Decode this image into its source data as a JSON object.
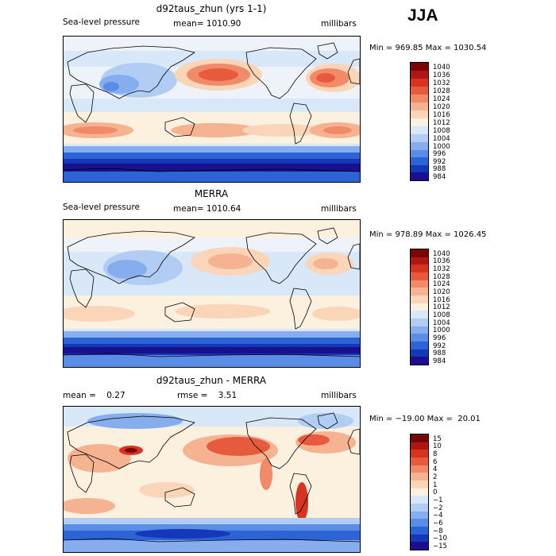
{
  "season": "JJA",
  "panels": [
    {
      "id": "model",
      "title": "d92taus_zhun (yrs 1-1)",
      "variable": "Sea-level pressure",
      "stat_left": "",
      "stat_mid": "mean= 1010.90",
      "units": "millibars",
      "minmax": "Min = 969.85 Max = 1030.54",
      "colors": [
        "#1a0f8c",
        "#1537b9",
        "#2c64d6",
        "#5a8ee6",
        "#86adee",
        "#b1cdf3",
        "#d9e8f8",
        "#fcf0df",
        "#fad5b8",
        "#f6b391",
        "#f08a68",
        "#e65b3d",
        "#d63421",
        "#b01614",
        "#7a0505"
      ],
      "labels": [
        "984",
        "988",
        "992",
        "996",
        "1000",
        "1004",
        "1008",
        "1012",
        "1016",
        "1020",
        "1024",
        "1028",
        "1032",
        "1036",
        "1040"
      ]
    },
    {
      "id": "merra",
      "title": "MERRA",
      "variable": "Sea-level pressure",
      "stat_left": "",
      "stat_mid": "mean= 1010.64",
      "units": "millibars",
      "minmax": "Min = 978.89 Max = 1026.45",
      "colors": [
        "#1a0f8c",
        "#1537b9",
        "#2c64d6",
        "#5a8ee6",
        "#86adee",
        "#b1cdf3",
        "#d9e8f8",
        "#fcf0df",
        "#fad5b8",
        "#f6b391",
        "#f08a68",
        "#e65b3d",
        "#d63421",
        "#b01614",
        "#7a0505"
      ],
      "labels": [
        "984",
        "988",
        "992",
        "996",
        "1000",
        "1004",
        "1008",
        "1012",
        "1016",
        "1020",
        "1024",
        "1028",
        "1032",
        "1036",
        "1040"
      ]
    },
    {
      "id": "diff",
      "title": "d92taus_zhun - MERRA",
      "variable": "",
      "stat_left": "mean =    0.27",
      "stat_mid": "rmse =    3.51",
      "units": "millibars",
      "minmax": "Min = −19.00 Max =  20.01",
      "colors": [
        "#1a0f8c",
        "#1537b9",
        "#2c64d6",
        "#5a8ee6",
        "#86adee",
        "#b1cdf3",
        "#d9e8f8",
        "#fcf0df",
        "#fad5b8",
        "#f6b391",
        "#f08a68",
        "#e65b3d",
        "#d63421",
        "#b01614",
        "#7a0505"
      ],
      "labels": [
        "−15",
        "−10",
        "−8",
        "−6",
        "−4",
        "−2",
        "−1",
        "0",
        "1",
        "2",
        "4",
        "6",
        "8",
        "10",
        "15"
      ]
    }
  ]
}
